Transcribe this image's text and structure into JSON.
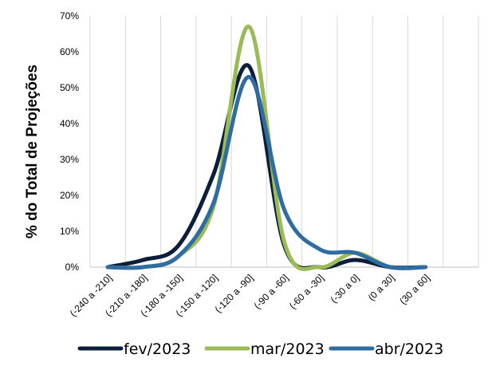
{
  "chart_data": {
    "type": "line",
    "ylabel": "% do Total de Projeções",
    "xlabel": "",
    "ylim": [
      0,
      70
    ],
    "yticks": [
      "0%",
      "10%",
      "20%",
      "30%",
      "40%",
      "50%",
      "60%",
      "70%"
    ],
    "grid": "vertical",
    "legend_position": "bottom",
    "categories": [
      "(-240 a -210]",
      "(-210 a -180]",
      "(-180 a -150]",
      "(-150 a -120]",
      "(-120 a -90]",
      "(-90 a -60]",
      "(-60 a -30]",
      "(-30 a 0]",
      "(0 a 30]",
      "(30 a 60]"
    ],
    "series": [
      {
        "name": "fev/2023",
        "color": "#0c1f3a",
        "values": [
          0,
          2,
          6,
          26,
          56,
          6,
          0,
          2,
          0,
          0
        ]
      },
      {
        "name": "mar/2023",
        "color": "#9bbb59",
        "values": [
          0,
          0,
          3,
          17,
          67,
          7,
          0,
          4,
          0,
          0
        ]
      },
      {
        "name": "abr/2023",
        "color": "#2e6ca1",
        "values": [
          0,
          0,
          3,
          18,
          53,
          16,
          5,
          4,
          0,
          0
        ]
      }
    ]
  }
}
